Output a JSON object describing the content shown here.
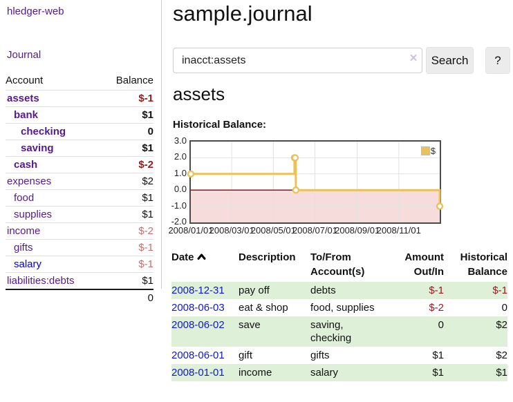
{
  "sidebar": {
    "brand": "hledger-web",
    "journal_link": "Journal",
    "accounts_table": {
      "account_header": "Account",
      "balance_header": "Balance",
      "rows": [
        {
          "account": "assets",
          "indent": 0,
          "bold": true,
          "balance": "$-1",
          "tone": "neg",
          "link_tone": "purple"
        },
        {
          "account": "bank",
          "indent": 1,
          "bold": true,
          "balance": "$1",
          "tone": "pos",
          "link_tone": "purple"
        },
        {
          "account": "checking",
          "indent": 2,
          "bold": true,
          "balance": "0",
          "tone": "pos",
          "link_tone": "purple"
        },
        {
          "account": "saving",
          "indent": 2,
          "bold": true,
          "balance": "$1",
          "tone": "pos",
          "link_tone": "purple"
        },
        {
          "account": "cash",
          "indent": 1,
          "bold": true,
          "balance": "$-2",
          "tone": "neg",
          "link_tone": "purple"
        },
        {
          "account": "expenses",
          "indent": 0,
          "bold": false,
          "balance": "$2",
          "tone": "pos",
          "link_tone": "purple"
        },
        {
          "account": "food",
          "indent": 1,
          "bold": false,
          "balance": "$1",
          "tone": "pos",
          "link_tone": "purple"
        },
        {
          "account": "supplies",
          "indent": 1,
          "bold": false,
          "balance": "$1",
          "tone": "pos",
          "link_tone": "purple"
        },
        {
          "account": "income",
          "indent": 0,
          "bold": false,
          "balance": "$-2",
          "tone": "neg-muted",
          "link_tone": "purple"
        },
        {
          "account": "gifts",
          "indent": 1,
          "bold": false,
          "balance": "$-1",
          "tone": "neg-muted",
          "link_tone": "purple"
        },
        {
          "account": "salary",
          "indent": 1,
          "bold": false,
          "balance": "$-1",
          "tone": "neg-muted",
          "link_tone": "blue"
        },
        {
          "account": "liabilities:debts",
          "indent": 0,
          "bold": false,
          "balance": "$1",
          "tone": "pos",
          "link_tone": "purple"
        }
      ],
      "total": "0"
    }
  },
  "header": {
    "title": "sample.journal"
  },
  "search": {
    "value": "inacct:assets",
    "clear_icon": "×",
    "button_label": "Search",
    "help_label": "?"
  },
  "account_page": {
    "title": "assets",
    "chart_heading": "Historical Balance:"
  },
  "chart_data": {
    "type": "line",
    "style": "step-after",
    "title": "Historical Balance",
    "legend": [
      {
        "label": "$",
        "color": "#e9c35a"
      }
    ],
    "ylim": [
      -2,
      3
    ],
    "y_ticks": [
      "3.0",
      "2.0",
      "1.0",
      "0.0",
      "-1.0",
      "-2.0"
    ],
    "y_tick_values": [
      3,
      2,
      1,
      0,
      -1,
      -2
    ],
    "x_ticks": [
      "2008/01/01",
      "2008/03/01",
      "2008/05/01",
      "2008/07/01",
      "2008/09/01",
      "2008/11/01"
    ],
    "x_tick_days": [
      0,
      60,
      121,
      182,
      244,
      305
    ],
    "x_range_days": [
      0,
      365
    ],
    "points": [
      {
        "date": "2008-01-01",
        "day": 0,
        "value": 1
      },
      {
        "date": "2008-06-01",
        "day": 152,
        "value": 2
      },
      {
        "date": "2008-06-02",
        "day": 153,
        "value": 2
      },
      {
        "date": "2008-06-03",
        "day": 154,
        "value": 0
      },
      {
        "date": "2008-12-31",
        "day": 365,
        "value": -1
      }
    ],
    "colors": {
      "line": "#e9c35a",
      "marker_fill": "#ffffff",
      "negative_area": "#f7dcdc",
      "zero_line": "#8b0000",
      "grid": "#e2e2e2",
      "border": "#4a4a4a"
    }
  },
  "register": {
    "headers": {
      "date": "Date",
      "description": "Description",
      "accounts": "To/From Account(s)",
      "amount": "Amount Out/In",
      "balance": "Historical Balance"
    },
    "rows": [
      {
        "date": "2008-12-31",
        "description": "pay off",
        "accounts": "debts",
        "amount": "$-1",
        "amount_neg": true,
        "balance": "$-1",
        "balance_neg": true
      },
      {
        "date": "2008-06-03",
        "description": "eat & shop",
        "accounts": "food, supplies",
        "amount": "$-2",
        "amount_neg": true,
        "balance": "0",
        "balance_neg": false
      },
      {
        "date": "2008-06-02",
        "description": "save",
        "accounts": "saving, checking",
        "amount": "0",
        "amount_neg": false,
        "balance": "$2",
        "balance_neg": false
      },
      {
        "date": "2008-06-01",
        "description": "gift",
        "accounts": "gifts",
        "amount": "$1",
        "amount_neg": false,
        "balance": "$2",
        "balance_neg": false
      },
      {
        "date": "2008-01-01",
        "description": "income",
        "accounts": "salary",
        "amount": "$1",
        "amount_neg": false,
        "balance": "$1",
        "balance_neg": false
      }
    ],
    "stripe_color": "#dff0d8"
  }
}
